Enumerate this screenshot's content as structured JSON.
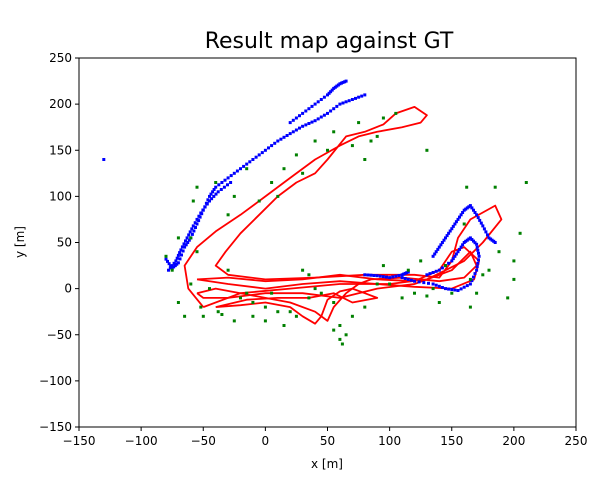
{
  "chart_data": {
    "type": "scatter",
    "title": "Result map against GT",
    "xlabel": "x [m]",
    "ylabel": "y [m]",
    "xlim": [
      -150,
      250
    ],
    "ylim": [
      -150,
      250
    ],
    "xticks": [
      -150,
      -100,
      -50,
      0,
      50,
      100,
      150,
      200,
      250
    ],
    "yticks": [
      -150,
      -100,
      -50,
      0,
      50,
      100,
      150,
      200,
      250
    ],
    "grid": false,
    "legend": "none",
    "colors": {
      "trajectory": "#ff0000",
      "map": "#0000ff",
      "landmarks": "#008000"
    },
    "series": [
      {
        "kind": "line",
        "color": "#ff0000",
        "paths": [
          [
            [
              -50,
              -20
            ],
            [
              -62,
              0
            ],
            [
              -65,
              25
            ],
            [
              -55,
              45
            ],
            [
              -40,
              62
            ],
            [
              -20,
              80
            ],
            [
              0,
              100
            ],
            [
              20,
              120
            ],
            [
              40,
              140
            ],
            [
              60,
              155
            ],
            [
              75,
              165
            ],
            [
              90,
              170
            ],
            [
              110,
              175
            ],
            [
              125,
              180
            ],
            [
              130,
              188
            ],
            [
              120,
              197
            ],
            [
              105,
              190
            ],
            [
              95,
              178
            ],
            [
              80,
              170
            ],
            [
              65,
              165
            ],
            [
              50,
              140
            ],
            [
              40,
              125
            ],
            [
              25,
              115
            ],
            [
              10,
              100
            ],
            [
              -5,
              80
            ],
            [
              -20,
              60
            ],
            [
              -32,
              40
            ],
            [
              -40,
              25
            ],
            [
              -30,
              15
            ],
            [
              0,
              10
            ],
            [
              40,
              12
            ],
            [
              80,
              15
            ],
            [
              120,
              15
            ],
            [
              140,
              12
            ],
            [
              150,
              30
            ],
            [
              155,
              55
            ],
            [
              165,
              75
            ],
            [
              185,
              90
            ],
            [
              190,
              75
            ],
            [
              175,
              50
            ],
            [
              160,
              30
            ],
            [
              130,
              10
            ],
            [
              100,
              5
            ],
            [
              60,
              5
            ],
            [
              20,
              0
            ],
            [
              -20,
              -5
            ],
            [
              -50,
              -20
            ]
          ],
          [
            [
              -55,
              -5
            ],
            [
              -40,
              0
            ],
            [
              -20,
              -5
            ],
            [
              0,
              -10
            ],
            [
              20,
              -15
            ],
            [
              40,
              -25
            ],
            [
              50,
              -35
            ],
            [
              55,
              -20
            ],
            [
              65,
              -5
            ],
            [
              75,
              5
            ],
            [
              85,
              10
            ],
            [
              110,
              12
            ],
            [
              140,
              8
            ],
            [
              160,
              12
            ],
            [
              170,
              25
            ],
            [
              165,
              40
            ],
            [
              150,
              20
            ],
            [
              120,
              5
            ],
            [
              90,
              0
            ],
            [
              60,
              -10
            ],
            [
              30,
              -5
            ],
            [
              0,
              -5
            ],
            [
              -30,
              -10
            ],
            [
              -50,
              -10
            ],
            [
              -55,
              -5
            ]
          ],
          [
            [
              -55,
              10
            ],
            [
              -30,
              5
            ],
            [
              0,
              0
            ],
            [
              30,
              5
            ],
            [
              60,
              8
            ],
            [
              90,
              5
            ],
            [
              120,
              2
            ],
            [
              150,
              0
            ],
            [
              168,
              10
            ],
            [
              172,
              30
            ],
            [
              160,
              45
            ],
            [
              150,
              40
            ],
            [
              140,
              20
            ],
            [
              120,
              8
            ],
            [
              90,
              10
            ],
            [
              60,
              15
            ],
            [
              30,
              10
            ],
            [
              0,
              8
            ],
            [
              -30,
              12
            ],
            [
              -55,
              10
            ]
          ],
          [
            [
              -40,
              -20
            ],
            [
              -20,
              -18
            ],
            [
              0,
              -15
            ],
            [
              20,
              -20
            ],
            [
              30,
              -30
            ],
            [
              40,
              -38
            ],
            [
              45,
              -30
            ],
            [
              50,
              -12
            ],
            [
              60,
              -3
            ],
            [
              70,
              0
            ],
            [
              80,
              -5
            ],
            [
              90,
              -10
            ],
            [
              70,
              -15
            ],
            [
              55,
              -5
            ],
            [
              35,
              -10
            ],
            [
              10,
              -10
            ],
            [
              -15,
              -12
            ],
            [
              -40,
              -20
            ]
          ]
        ]
      },
      {
        "kind": "scatter",
        "color": "#0000ff",
        "paths": [
          [
            [
              -80,
              32
            ],
            [
              -75,
              22
            ],
            [
              -70,
              28
            ],
            [
              -65,
              45
            ],
            [
              -60,
              55
            ],
            [
              -55,
              70
            ],
            [
              -50,
              85
            ],
            [
              -45,
              100
            ],
            [
              -40,
              110
            ],
            [
              -30,
              120
            ],
            [
              -20,
              130
            ],
            [
              -10,
              140
            ],
            [
              0,
              150
            ],
            [
              10,
              160
            ],
            [
              20,
              168
            ],
            [
              30,
              176
            ],
            [
              40,
              182
            ],
            [
              50,
              190
            ],
            [
              60,
              200
            ],
            [
              70,
              205
            ],
            [
              80,
              210
            ]
          ],
          [
            [
              -78,
              20
            ],
            [
              -72,
              30
            ],
            [
              -68,
              42
            ],
            [
              -63,
              55
            ],
            [
              -58,
              68
            ],
            [
              -52,
              82
            ],
            [
              -45,
              95
            ],
            [
              -38,
              105
            ],
            [
              -28,
              115
            ]
          ],
          [
            [
              20,
              180
            ],
            [
              30,
              190
            ],
            [
              40,
              200
            ],
            [
              50,
              210
            ],
            [
              55,
              217
            ],
            [
              60,
              222
            ],
            [
              65,
              225
            ]
          ],
          [
            [
              -130,
              140
            ]
          ],
          [
            [
              110,
              12
            ],
            [
              120,
              8
            ],
            [
              135,
              5
            ],
            [
              145,
              0
            ],
            [
              155,
              -2
            ],
            [
              165,
              5
            ],
            [
              170,
              20
            ],
            [
              172,
              35
            ],
            [
              170,
              48
            ],
            [
              165,
              55
            ],
            [
              160,
              50
            ],
            [
              155,
              40
            ],
            [
              150,
              30
            ],
            [
              140,
              20
            ],
            [
              130,
              15
            ]
          ],
          [
            [
              135,
              35
            ],
            [
              140,
              45
            ],
            [
              145,
              55
            ],
            [
              150,
              65
            ],
            [
              155,
              75
            ],
            [
              160,
              85
            ],
            [
              165,
              90
            ],
            [
              170,
              80
            ],
            [
              175,
              68
            ],
            [
              180,
              55
            ],
            [
              185,
              50
            ]
          ],
          [
            [
              80,
              15
            ],
            [
              90,
              14
            ],
            [
              100,
              12
            ],
            [
              110,
              15
            ],
            [
              115,
              18
            ]
          ]
        ]
      },
      {
        "kind": "scatter",
        "color": "#008000",
        "points": [
          [
            -80,
            35
          ],
          [
            -75,
            20
          ],
          [
            -70,
            55
          ],
          [
            -70,
            -15
          ],
          [
            -65,
            -30
          ],
          [
            -60,
            5
          ],
          [
            -58,
            95
          ],
          [
            -55,
            110
          ],
          [
            -52,
            -20
          ],
          [
            -50,
            -30
          ],
          [
            -45,
            0
          ],
          [
            -40,
            115
          ],
          [
            -38,
            -25
          ],
          [
            -35,
            -28
          ],
          [
            -30,
            80
          ],
          [
            -30,
            20
          ],
          [
            -25,
            -35
          ],
          [
            -20,
            -10
          ],
          [
            -10,
            -30
          ],
          [
            -5,
            95
          ],
          [
            0,
            -20
          ],
          [
            5,
            -5
          ],
          [
            10,
            100
          ],
          [
            15,
            -40
          ],
          [
            20,
            -25
          ],
          [
            25,
            145
          ],
          [
            30,
            125
          ],
          [
            30,
            20
          ],
          [
            35,
            15
          ],
          [
            40,
            0
          ],
          [
            45,
            -5
          ],
          [
            50,
            150
          ],
          [
            55,
            -15
          ],
          [
            55,
            -45
          ],
          [
            60,
            -55
          ],
          [
            62,
            -60
          ],
          [
            65,
            -50
          ],
          [
            70,
            155
          ],
          [
            75,
            180
          ],
          [
            80,
            140
          ],
          [
            85,
            160
          ],
          [
            90,
            165
          ],
          [
            95,
            25
          ],
          [
            100,
            5
          ],
          [
            110,
            -10
          ],
          [
            115,
            20
          ],
          [
            120,
            -5
          ],
          [
            125,
            30
          ],
          [
            130,
            150
          ],
          [
            135,
            0
          ],
          [
            140,
            -15
          ],
          [
            145,
            25
          ],
          [
            150,
            -5
          ],
          [
            160,
            70
          ],
          [
            162,
            110
          ],
          [
            165,
            10
          ],
          [
            170,
            -5
          ],
          [
            175,
            15
          ],
          [
            180,
            20
          ],
          [
            185,
            110
          ],
          [
            188,
            40
          ],
          [
            195,
            -10
          ],
          [
            200,
            30
          ],
          [
            200,
            10
          ],
          [
            205,
            60
          ],
          [
            210,
            115
          ],
          [
            -10,
            -15
          ],
          [
            -15,
            -5
          ],
          [
            0,
            -35
          ],
          [
            10,
            -25
          ],
          [
            25,
            -30
          ],
          [
            35,
            -10
          ],
          [
            60,
            -40
          ],
          [
            70,
            -30
          ],
          [
            80,
            -20
          ],
          [
            90,
            5
          ],
          [
            130,
            -8
          ],
          [
            165,
            -20
          ],
          [
            -60,
            55
          ],
          [
            -55,
            40
          ],
          [
            -25,
            100
          ],
          [
            -15,
            130
          ],
          [
            5,
            115
          ],
          [
            15,
            130
          ],
          [
            40,
            160
          ],
          [
            55,
            170
          ],
          [
            95,
            185
          ],
          [
            105,
            190
          ]
        ]
      }
    ]
  }
}
